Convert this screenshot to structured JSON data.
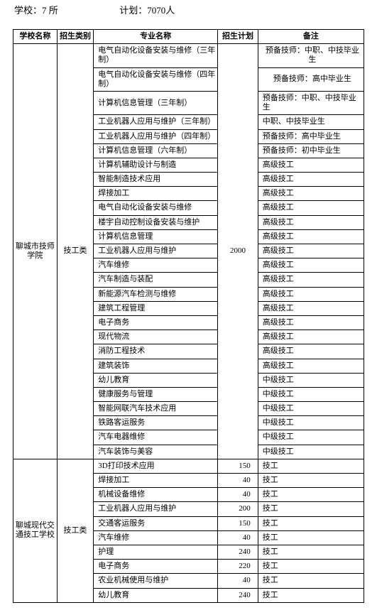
{
  "header": {
    "schools_label": "学校：",
    "schools_value": "7 所",
    "plan_label": "计划：",
    "plan_value": "7070人"
  },
  "columns": {
    "school": "学校名称",
    "category": "招生类别",
    "major": "专业名称",
    "plan": "招生计划",
    "remark": "备注"
  },
  "block1": {
    "school": "聊城市技师学院",
    "category": "技工类",
    "plan": "2000",
    "rows": [
      {
        "major": "电气自动化设备安装与维修（三年制）",
        "remark": "预备技师：中职、中技毕业生",
        "tallMajor": true,
        "tallRemark": true
      },
      {
        "major": "电气自动化设备安装与维修（四年制）",
        "remark": "预备技师：高中毕业生",
        "tallMajor": true,
        "tallRemark": true
      },
      {
        "major": "计算机信息管理（三年制）",
        "remark": "预备技师：中职、中技毕业生"
      },
      {
        "major": "工业机器人应用与维护（三年制）",
        "remark": "中职、中技毕业生"
      },
      {
        "major": "工业机器人应用与维护（四年制）",
        "remark": "预备技师：高中毕业生"
      },
      {
        "major": "计算机信息管理（六年制）",
        "remark": "预备技师：初中毕业生"
      },
      {
        "major": "计算机辅助设计与制造",
        "remark": "高级技工"
      },
      {
        "major": "智能制造技术应用",
        "remark": "高级技工"
      },
      {
        "major": "焊接加工",
        "remark": "高级技工"
      },
      {
        "major": "电气自动化设备安装与维修",
        "remark": "高级技工"
      },
      {
        "major": "楼宇自动控制设备安装与维护",
        "remark": "高级技工"
      },
      {
        "major": "计算机信息管理",
        "remark": "高级技工"
      },
      {
        "major": "工业机器人应用与维护",
        "remark": "高级技工"
      },
      {
        "major": "汽车维修",
        "remark": "高级技工"
      },
      {
        "major": "汽车制造与装配",
        "remark": "高级技工"
      },
      {
        "major": "新能源汽车检测与维修",
        "remark": "高级技工"
      },
      {
        "major": "建筑工程管理",
        "remark": "高级技工"
      },
      {
        "major": "电子商务",
        "remark": "高级技工"
      },
      {
        "major": "现代物流",
        "remark": "高级技工"
      },
      {
        "major": "消防工程技术",
        "remark": "高级技工"
      },
      {
        "major": "建筑装饰",
        "remark": "高级技工"
      },
      {
        "major": "幼儿教育",
        "remark": "中级技工"
      },
      {
        "major": "健康服务与管理",
        "remark": "中级技工"
      },
      {
        "major": "智能网联汽车技术应用",
        "remark": "中级技工"
      },
      {
        "major": "铁路客运服务",
        "remark": "中级技工"
      },
      {
        "major": "汽车电器维修",
        "remark": "中级技工"
      },
      {
        "major": "汽车装饰与美容",
        "remark": "中级技工"
      }
    ]
  },
  "block2": {
    "school": "聊城现代交通技工学校",
    "category": "技工类",
    "rows": [
      {
        "major": "3D打印技术应用",
        "plan": "150",
        "remark": "技工"
      },
      {
        "major": "焊接加工",
        "plan": "40",
        "remark": "技工"
      },
      {
        "major": "机械设备维修",
        "plan": "40",
        "remark": "技工"
      },
      {
        "major": "工业机器人应用与维护",
        "plan": "200",
        "remark": "技工"
      },
      {
        "major": "交通客运服务",
        "plan": "150",
        "remark": "技工"
      },
      {
        "major": "汽车维修",
        "plan": "40",
        "remark": "技工"
      },
      {
        "major": "护理",
        "plan": "240",
        "remark": "技工"
      },
      {
        "major": "电子商务",
        "plan": "220",
        "remark": "技工"
      },
      {
        "major": "农业机械使用与维护",
        "plan": "40",
        "remark": "技工"
      },
      {
        "major": "幼儿教育",
        "plan": "240",
        "remark": "技工"
      }
    ]
  }
}
